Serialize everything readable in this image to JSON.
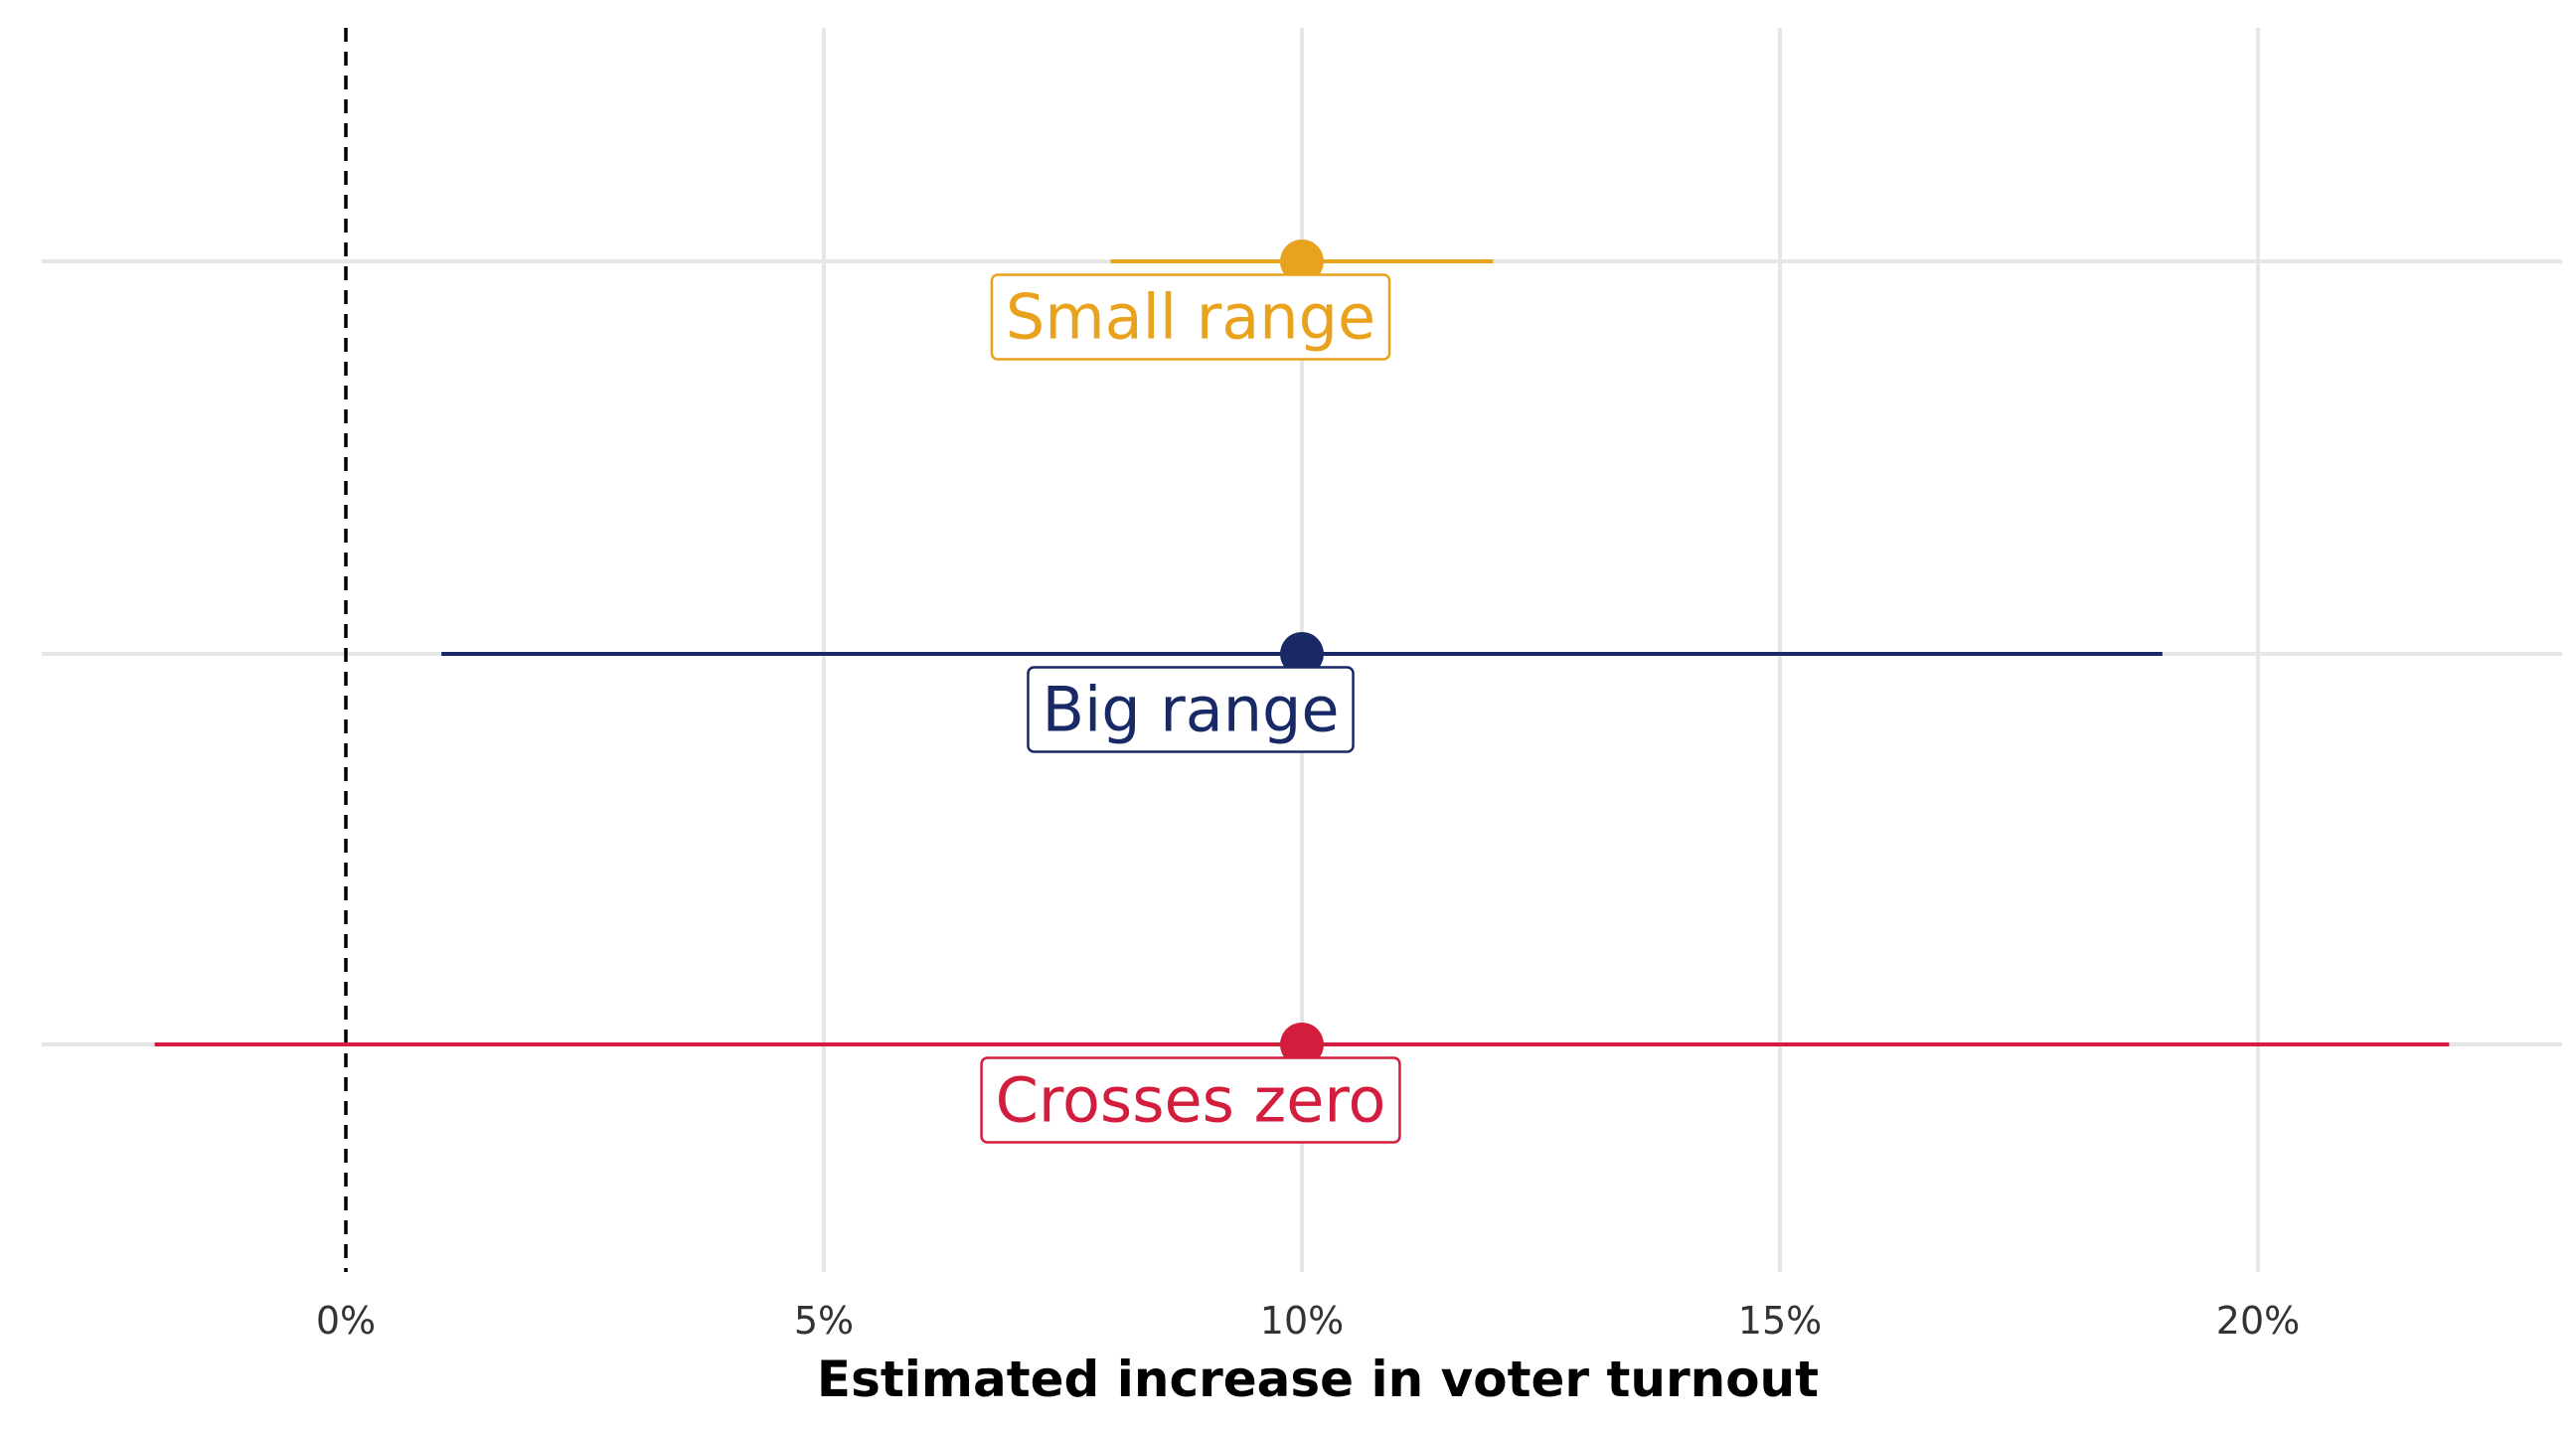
{
  "chart_data": {
    "type": "scatter",
    "subtype": "point-range",
    "title": "",
    "xlabel": "Estimated increase in voter turnout",
    "ylabel": "",
    "xlim": [
      -0.032,
      0.232
    ],
    "x_ticks": [
      0,
      0.05,
      0.1,
      0.15,
      0.2
    ],
    "x_tick_labels": [
      "0%",
      "5%",
      "10%",
      "15%",
      "20%"
    ],
    "reference_line": {
      "x": 0,
      "style": "dashed"
    },
    "grid": true,
    "legend": "none",
    "series": [
      {
        "name": "Small range",
        "estimate": 0.1,
        "low": 0.08,
        "high": 0.12,
        "color": "#E9A21D"
      },
      {
        "name": "Big range",
        "estimate": 0.1,
        "low": 0.01,
        "high": 0.19,
        "color": "#182966"
      },
      {
        "name": "Crosses zero",
        "estimate": 0.1,
        "low": -0.02,
        "high": 0.22,
        "color": "#D21E3C"
      }
    ]
  }
}
